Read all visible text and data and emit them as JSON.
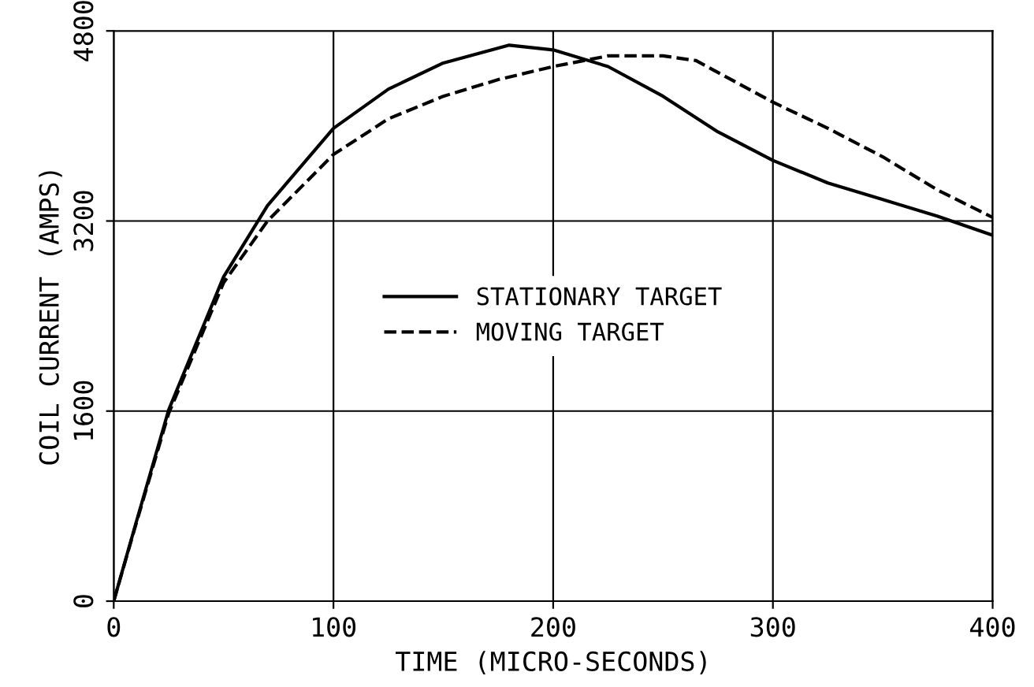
{
  "chart_data": {
    "type": "line",
    "xlabel": "TIME (MICRO-SECONDS)",
    "ylabel": "COIL CURRENT (AMPS)",
    "xlim": [
      0,
      400
    ],
    "ylim": [
      0,
      4800
    ],
    "xticks": [
      0,
      100,
      200,
      300,
      400
    ],
    "yticks": [
      0,
      1600,
      3200,
      4800
    ],
    "grid": true,
    "legend": "center",
    "marker": "none",
    "series": [
      {
        "name": "STATIONARY TARGET",
        "color": "#000000",
        "line_style": "solid",
        "x": [
          0,
          10,
          25,
          50,
          70,
          100,
          125,
          150,
          180,
          200,
          225,
          250,
          275,
          300,
          325,
          350,
          375,
          400
        ],
        "values": [
          0,
          650,
          1610,
          2730,
          3330,
          3980,
          4310,
          4530,
          4680,
          4640,
          4500,
          4250,
          3950,
          3710,
          3520,
          3380,
          3240,
          3080
        ]
      },
      {
        "name": "MOVING TARGET",
        "color": "#000000",
        "line_style": "dashed",
        "x": [
          0,
          10,
          25,
          50,
          70,
          100,
          125,
          150,
          175,
          200,
          225,
          250,
          265,
          300,
          325,
          350,
          375,
          400
        ],
        "values": [
          0,
          640,
          1580,
          2680,
          3200,
          3760,
          4060,
          4250,
          4390,
          4500,
          4590,
          4590,
          4550,
          4200,
          3980,
          3740,
          3460,
          3230
        ]
      }
    ]
  }
}
